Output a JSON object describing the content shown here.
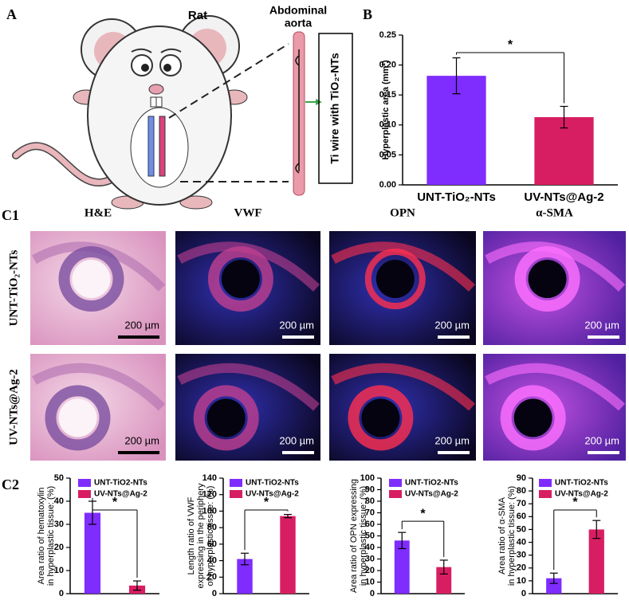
{
  "figure": {
    "panels": [
      "A",
      "B",
      "C1",
      "C2"
    ],
    "illustration": {
      "rat": "Rat",
      "aorta": [
        "Abdominal",
        "aorta"
      ],
      "wire": "Ti wire with TiO₂-NTs"
    },
    "micrographs": {
      "columns": [
        "H&E",
        "VWF",
        "OPN",
        "α-SMA"
      ],
      "rows": [
        "UNT-TiO₂-NTs",
        "UV-NTs@Ag-2"
      ],
      "scale_bar": "200 µm"
    }
  },
  "chart_data": [
    {
      "type": "bar",
      "ylabel": [
        "Hyperplastic area (mm²)"
      ],
      "categories": [
        "UNT-TiO₂-NTs",
        "UV-NTs@Ag-2"
      ],
      "values": [
        0.182,
        0.113
      ],
      "errors": [
        0.03,
        0.018
      ],
      "colors": [
        "#7f2cff",
        "#d81e62"
      ],
      "ylim": [
        0,
        0.25
      ],
      "yticks": [
        {
          "value": 0,
          "label": "0.00"
        },
        {
          "value": 0.05,
          "label": "0.05"
        },
        {
          "value": 0.1,
          "label": "0.10"
        },
        {
          "value": 0.15,
          "label": "0.15"
        },
        {
          "value": 0.2,
          "label": "0.20"
        },
        {
          "value": 0.25,
          "label": "0.25"
        }
      ],
      "annotation": "*"
    },
    {
      "type": "bar",
      "ylabel": [
        "Area ratio of hematoxylin",
        "in hyperplastic tissue: (%)"
      ],
      "categories": [
        "UNT-TiO2-NTs",
        "UV-NTs@Ag-2"
      ],
      "values": [
        35,
        3.5
      ],
      "errors": [
        5,
        2
      ],
      "colors": [
        "#7f2cff",
        "#d81e62"
      ],
      "ylim": [
        0,
        50
      ],
      "yticks": [
        0,
        10,
        20,
        30,
        40,
        50
      ],
      "legend": "upper right",
      "annotation": "*"
    },
    {
      "type": "bar",
      "ylabel": [
        "Length ratio of VWF",
        "expressing in the periphery",
        "of hyperplastic tissue: (%)"
      ],
      "categories": [
        "UNT-TiO2-NTs",
        "UV-NTs@Ag-2"
      ],
      "values": [
        42,
        94
      ],
      "errors": [
        7,
        2
      ],
      "colors": [
        "#7f2cff",
        "#d81e62"
      ],
      "ylim": [
        0,
        140
      ],
      "yticks": [
        0,
        20,
        40,
        60,
        80,
        100,
        120,
        140
      ],
      "legend": "upper left",
      "annotation": "*"
    },
    {
      "type": "bar",
      "ylabel": [
        "Area ratio of OPN expressing",
        "in hyperplastic tissue: (%)"
      ],
      "categories": [
        "UNT-TiO2-NTs",
        "UV-NTs@Ag-2"
      ],
      "values": [
        46,
        23
      ],
      "errors": [
        7,
        6
      ],
      "colors": [
        "#7f2cff",
        "#d81e62"
      ],
      "ylim": [
        0,
        100
      ],
      "yticks": [
        0,
        10,
        20,
        30,
        40,
        50,
        60,
        70,
        80,
        90,
        100
      ],
      "legend": "upper right",
      "annotation": "*"
    },
    {
      "type": "bar",
      "ylabel": [
        "Area ratio of α-SMA",
        "in hyperplastic tissue: (%)"
      ],
      "categories": [
        "UNT-TiO2-NTs",
        "UV-NTs@Ag-2"
      ],
      "values": [
        12,
        50
      ],
      "errors": [
        4,
        7
      ],
      "colors": [
        "#7f2cff",
        "#d81e62"
      ],
      "ylim": [
        0,
        90
      ],
      "yticks": [
        0,
        10,
        20,
        30,
        40,
        50,
        60,
        70,
        80,
        90
      ],
      "legend": "upper left",
      "annotation": "*"
    }
  ]
}
